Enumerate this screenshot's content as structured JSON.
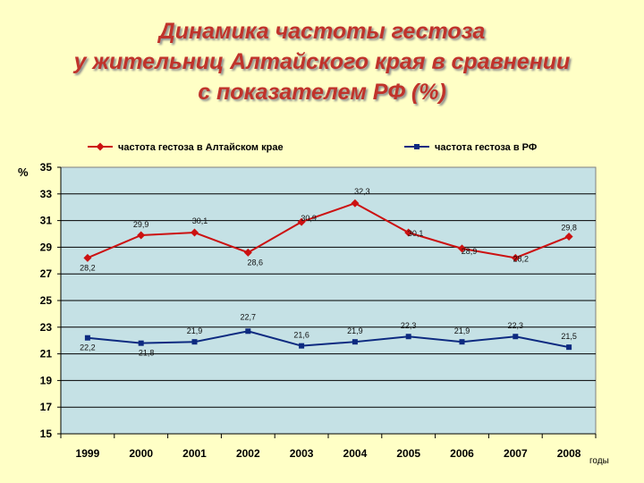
{
  "title": {
    "line1": "Динамика частоты гестоза",
    "line2": "у жительниц Алтайского края в сравнении",
    "line3": "с показателем РФ (%)"
  },
  "chart_data": {
    "type": "line",
    "ylabel": "%",
    "xlabel": "годы",
    "ylim": [
      15,
      35
    ],
    "yticks": [
      15,
      17,
      19,
      21,
      23,
      25,
      27,
      29,
      31,
      33,
      35
    ],
    "grid": true,
    "legend_position": "top",
    "categories": [
      "1999",
      "2000",
      "2001",
      "2002",
      "2003",
      "2004",
      "2005",
      "2006",
      "2007",
      "2008"
    ],
    "series": [
      {
        "name": "частота гестоза в Алтайском крае",
        "color": "#cc1111",
        "marker": "diamond",
        "values": [
          28.2,
          29.9,
          30.1,
          28.6,
          30.9,
          32.3,
          30.1,
          28.9,
          28.2,
          29.8
        ],
        "labels": [
          "28,2",
          "29,9",
          "30,1",
          "28,6",
          "30,9",
          "32,3",
          "30,1",
          "28,9",
          "28,2",
          "29,8"
        ]
      },
      {
        "name": "частота гестоза в РФ",
        "color": "#0d2a80",
        "marker": "square",
        "values": [
          22.2,
          21.8,
          21.9,
          22.7,
          21.6,
          21.9,
          22.3,
          21.9,
          22.3,
          21.5
        ],
        "labels": [
          "22,2",
          "21,8",
          "21,9",
          "22,7",
          "21,6",
          "21,9",
          "22,3",
          "21,9",
          "22,3",
          "21,5"
        ]
      }
    ]
  }
}
